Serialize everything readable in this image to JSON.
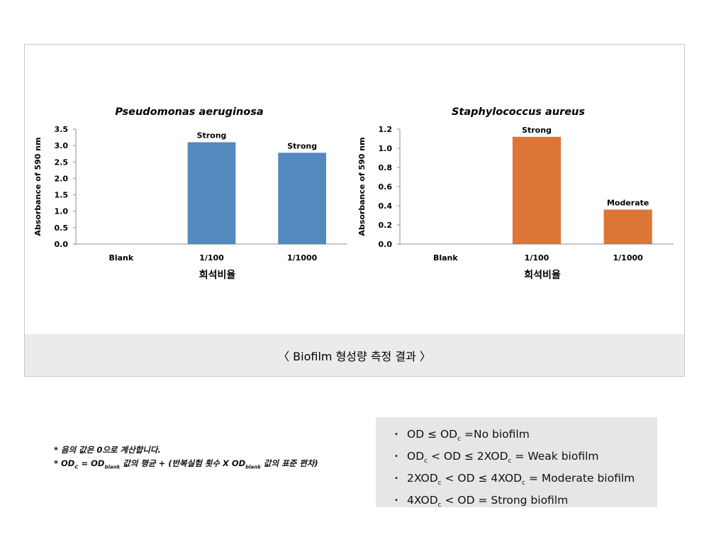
{
  "chart_data": [
    {
      "type": "bar",
      "title": "Pseudomonas aeruginosa",
      "categories": [
        "Blank",
        "1/100",
        "1/1000"
      ],
      "values": [
        0,
        3.1,
        2.78
      ],
      "data_labels": [
        "",
        "Strong",
        "Strong"
      ],
      "ylabel": "Absorbance of 590 nm",
      "xlabel": "희석비율",
      "ylim": [
        0,
        3.5
      ],
      "yticks": [
        "0.0",
        "0.5",
        "1.0",
        "1.5",
        "2.0",
        "2.5",
        "3.0",
        "3.5"
      ],
      "color": "#5289BE",
      "grid": false
    },
    {
      "type": "bar",
      "title": "Staphylococcus aureus",
      "categories": [
        "Blank",
        "1/100",
        "1/1000"
      ],
      "values": [
        0,
        1.12,
        0.36
      ],
      "data_labels": [
        "",
        "Strong",
        "Moderate"
      ],
      "ylabel": "Absorbance of 590 nm",
      "xlabel": "희석비율",
      "ylim": [
        0,
        1.2
      ],
      "yticks": [
        "0.0",
        "0.2",
        "0.4",
        "0.6",
        "0.8",
        "1.0",
        "1.2"
      ],
      "color": "#DC7636",
      "grid": false
    }
  ],
  "caption": "〈 Biofilm 형성량 측정 결과 〉",
  "notes": {
    "line1": "* 음의 값은 0으로 계산합니다.",
    "line2_a": "* OD",
    "line2_sub1": "C",
    "line2_b": " = OD",
    "line2_sub2": "blank",
    "line2_c": " 값의 평균 + (반복실험 횟수 X OD",
    "line2_sub3": "blank",
    "line2_d": " 값의 표준 편차)"
  },
  "legend": {
    "bullet": "•",
    "items": [
      {
        "a": "OD ≤ OD",
        "sub1": "c",
        "b": " =No biofilm",
        "sub2": "",
        "c": ""
      },
      {
        "a": "OD",
        "sub1": "c",
        "b": " < OD ≤ 2XOD",
        "sub2": "c",
        "c": " = Weak biofilm"
      },
      {
        "a": "2XOD",
        "sub1": "c",
        "b": " < OD ≤ 4XOD",
        "sub2": "c",
        "c": " = Moderate biofilm"
      },
      {
        "a": "4XOD",
        "sub1": "c",
        "b": " < OD = Strong biofilm",
        "sub2": "",
        "c": ""
      }
    ]
  }
}
